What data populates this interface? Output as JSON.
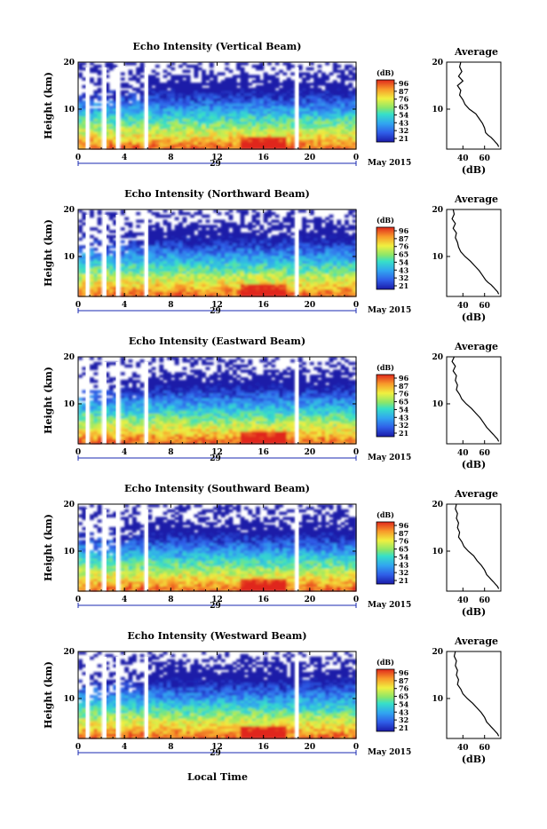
{
  "figure": {
    "xlabel": "Local Time",
    "date_label": "May 2015",
    "day_label": "29",
    "colorbar_unit": "(dB)",
    "colorbar_ticks": [
      "96",
      "87",
      "76",
      "65",
      "54",
      "43",
      "32",
      "21"
    ],
    "average_title": "Average",
    "average_xlabel": "(dB)",
    "main_ylabel": "Height (km)"
  },
  "chart_data": [
    {
      "type": "heatmap",
      "title": "Echo Intensity (Vertical Beam)",
      "x_ticks": [
        "0",
        "4",
        "8",
        "12",
        "16",
        "20",
        "0"
      ],
      "xlim": [
        0,
        24
      ],
      "y_ticks": [
        "20",
        "10"
      ],
      "ylim": [
        1.5,
        20
      ],
      "colorbar_range": [
        21,
        96
      ],
      "profile": {
        "xlabel": "(dB)",
        "x_ticks": [
          "40",
          "60"
        ],
        "y_ticks": [
          "20",
          "10"
        ],
        "xlim": [
          25,
          75
        ],
        "x": [
          38,
          37,
          39,
          36,
          40,
          35,
          38,
          37,
          40,
          42,
          46,
          52,
          55,
          58,
          60,
          61,
          63,
          66,
          68,
          70,
          72,
          73
        ],
        "y": [
          20,
          19,
          18,
          17,
          16,
          15,
          14,
          13,
          12,
          11,
          10,
          9,
          8,
          7,
          6,
          5,
          4.5,
          4,
          3.5,
          3,
          2.5,
          2
        ]
      }
    },
    {
      "type": "heatmap",
      "title": "Echo Intensity (Northward Beam)",
      "x_ticks": [
        "0",
        "4",
        "8",
        "12",
        "16",
        "20",
        "0"
      ],
      "xlim": [
        0,
        24
      ],
      "y_ticks": [
        "20",
        "10"
      ],
      "ylim": [
        1.5,
        20
      ],
      "colorbar_range": [
        21,
        96
      ],
      "profile": {
        "xlabel": "(dB)",
        "x_ticks": [
          "40",
          "60"
        ],
        "y_ticks": [
          "20",
          "10"
        ],
        "xlim": [
          25,
          75
        ],
        "x": [
          31,
          32,
          30,
          33,
          31,
          34,
          33,
          35,
          36,
          38,
          42,
          47,
          51,
          55,
          58,
          61,
          63,
          66,
          68,
          70,
          72,
          73
        ],
        "y": [
          20,
          19,
          18,
          17,
          16,
          15,
          14,
          13,
          12,
          11,
          10,
          9,
          8,
          7,
          6,
          5,
          4.5,
          4,
          3.5,
          3,
          2.5,
          2
        ]
      }
    },
    {
      "type": "heatmap",
      "title": "Echo Intensity (Eastward Beam)",
      "x_ticks": [
        "0",
        "4",
        "8",
        "12",
        "16",
        "20",
        "0"
      ],
      "xlim": [
        0,
        24
      ],
      "y_ticks": [
        "20",
        "10"
      ],
      "ylim": [
        1.5,
        20
      ],
      "colorbar_range": [
        21,
        96
      ],
      "profile": {
        "xlabel": "(dB)",
        "x_ticks": [
          "40",
          "60"
        ],
        "y_ticks": [
          "20",
          "10"
        ],
        "xlim": [
          25,
          75
        ],
        "x": [
          32,
          30,
          33,
          31,
          34,
          33,
          35,
          34,
          37,
          39,
          43,
          48,
          52,
          56,
          59,
          62,
          64,
          66,
          68,
          70,
          72,
          73
        ],
        "y": [
          20,
          19,
          18,
          17,
          16,
          15,
          14,
          13,
          12,
          11,
          10,
          9,
          8,
          7,
          6,
          5,
          4.5,
          4,
          3.5,
          3,
          2.5,
          2
        ]
      }
    },
    {
      "type": "heatmap",
      "title": "Echo Intensity (Southward Beam)",
      "x_ticks": [
        "0",
        "4",
        "8",
        "12",
        "16",
        "20",
        "0"
      ],
      "xlim": [
        0,
        24
      ],
      "y_ticks": [
        "20",
        "10"
      ],
      "ylim": [
        1.5,
        20
      ],
      "colorbar_range": [
        21,
        96
      ],
      "profile": {
        "xlabel": "(dB)",
        "x_ticks": [
          "40",
          "60"
        ],
        "y_ticks": [
          "20",
          "10"
        ],
        "xlim": [
          25,
          75
        ],
        "x": [
          34,
          33,
          35,
          34,
          36,
          35,
          37,
          36,
          39,
          41,
          45,
          50,
          53,
          57,
          60,
          62,
          64,
          66,
          68,
          70,
          72,
          73
        ],
        "y": [
          20,
          19,
          18,
          17,
          16,
          15,
          14,
          13,
          12,
          11,
          10,
          9,
          8,
          7,
          6,
          5,
          4.5,
          4,
          3.5,
          3,
          2.5,
          2
        ]
      }
    },
    {
      "type": "heatmap",
      "title": "Echo Intensity (Westward Beam)",
      "x_ticks": [
        "0",
        "4",
        "8",
        "12",
        "16",
        "20",
        "0"
      ],
      "xlim": [
        0,
        24
      ],
      "y_ticks": [
        "20",
        "10"
      ],
      "ylim": [
        1.5,
        20
      ],
      "colorbar_range": [
        21,
        96
      ],
      "profile": {
        "xlabel": "(dB)",
        "x_ticks": [
          "40",
          "60"
        ],
        "y_ticks": [
          "20",
          "10"
        ],
        "xlim": [
          25,
          75
        ],
        "x": [
          33,
          32,
          34,
          33,
          35,
          34,
          36,
          35,
          38,
          40,
          44,
          49,
          53,
          57,
          60,
          62,
          64,
          66,
          68,
          70,
          72,
          73
        ],
        "y": [
          20,
          19,
          18,
          17,
          16,
          15,
          14,
          13,
          12,
          11,
          10,
          9,
          8,
          7,
          6,
          5,
          4.5,
          4,
          3.5,
          3,
          2.5,
          2
        ]
      }
    }
  ]
}
